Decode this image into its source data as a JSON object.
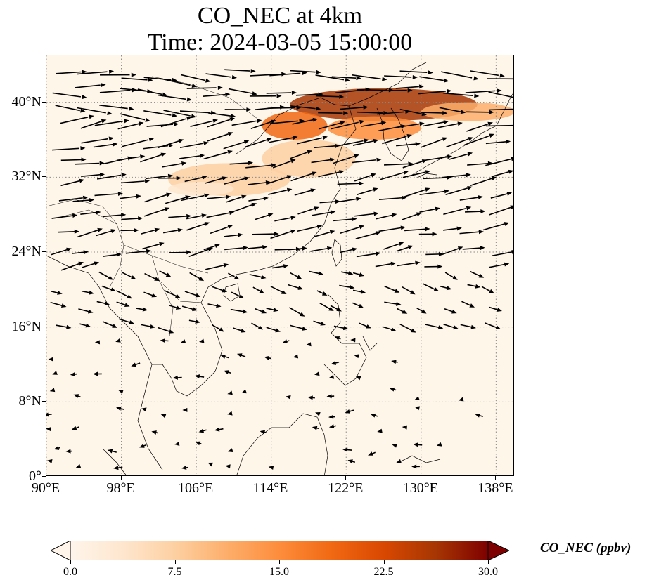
{
  "title": {
    "line1": "CO_NEC at 4km",
    "line2": "Time: 2024-03-05 15:00:00"
  },
  "map": {
    "extent": {
      "lon_min": 90,
      "lon_max": 140,
      "lat_min": 0,
      "lat_max": 45
    },
    "lat_ticks": [
      {
        "value": 0,
        "label": "0°"
      },
      {
        "value": 8,
        "label": "8°N"
      },
      {
        "value": 16,
        "label": "16°N"
      },
      {
        "value": 24,
        "label": "24°N"
      },
      {
        "value": 32,
        "label": "32°N"
      },
      {
        "value": 40,
        "label": "40°N"
      }
    ],
    "lon_ticks": [
      {
        "value": 90,
        "label": "90°E"
      },
      {
        "value": 98,
        "label": "98°E"
      },
      {
        "value": 106,
        "label": "106°E"
      },
      {
        "value": 114,
        "label": "114°E"
      },
      {
        "value": 122,
        "label": "122°E"
      },
      {
        "value": 130,
        "label": "130°E"
      },
      {
        "value": 138,
        "label": "138°E"
      }
    ],
    "plume_regions": [
      {
        "lon": [
          116,
          136
        ],
        "lat": [
          38,
          41.5
        ],
        "value": 28
      },
      {
        "lon": [
          113,
          120
        ],
        "lat": [
          36,
          39
        ],
        "value": 18
      },
      {
        "lon": [
          120,
          130
        ],
        "lat": [
          36,
          38.5
        ],
        "value": 14
      },
      {
        "lon": [
          130,
          140
        ],
        "lat": [
          38,
          40
        ],
        "value": 10
      },
      {
        "lon": [
          103,
          116
        ],
        "lat": [
          30,
          33.5
        ],
        "value": 7
      },
      {
        "lon": [
          113,
          123
        ],
        "lat": [
          32,
          36
        ],
        "value": 6
      },
      {
        "lon": [
          103,
          110
        ],
        "lat": [
          30,
          31.5
        ],
        "value": 5
      }
    ]
  },
  "colorbar": {
    "label": "CO_NEC (ppbv)",
    "min": 0,
    "max": 30,
    "ticks": [
      "0.0",
      "7.5",
      "15.0",
      "22.5",
      "30.0"
    ],
    "colors": [
      "#fff5eb",
      "#fee6ce",
      "#fdd0a2",
      "#fdae6b",
      "#fd8d3c",
      "#f16913",
      "#d94801",
      "#a63603",
      "#7f0000"
    ]
  }
}
